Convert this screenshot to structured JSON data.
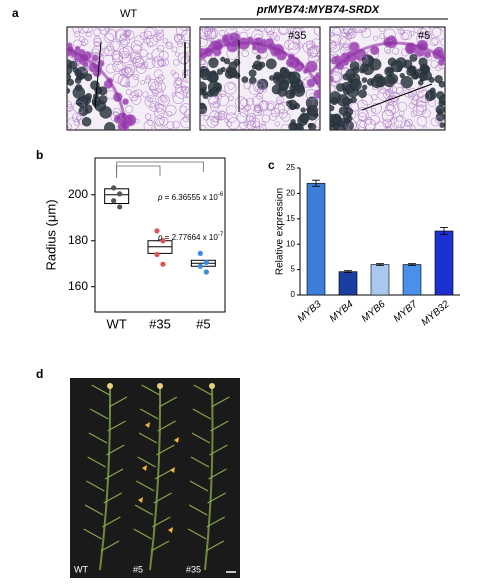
{
  "panel_labels": [
    "a",
    "b",
    "c",
    "d"
  ],
  "panel_a": {
    "group_label": "prMYB74:MYB74-SRDX",
    "images": [
      {
        "label": "WT"
      },
      {
        "label": "#35"
      },
      {
        "label": "#5"
      }
    ]
  },
  "chart_data": [
    {
      "type": "box",
      "ylabel": "Radius (μm)",
      "categories": [
        "WT",
        "#35",
        "#5"
      ],
      "colors": [
        "#555555",
        "#e05252",
        "#3a8fdc"
      ],
      "boxes": [
        {
          "q1": 196.2,
          "median": 200,
          "q3": 202.6,
          "points": [
            203,
            200.4,
            197.4,
            194.7
          ]
        },
        {
          "q1": 174.5,
          "median": 177.4,
          "q3": 180,
          "points": [
            184.3,
            180,
            174,
            169.8
          ]
        },
        {
          "q1": 168.9,
          "median": 170.2,
          "q3": 171.5,
          "points": [
            174.5,
            170.6,
            168.9,
            166.4
          ]
        }
      ],
      "ylim": [
        149,
        216
      ],
      "yticks": [
        160,
        180,
        200
      ],
      "annotations": [
        {
          "prefix": "p",
          "text": " = 6.36555 x 10",
          "exponent": "-6"
        },
        {
          "prefix": "p",
          "text": " = 2.77664 x 10",
          "exponent": "-7"
        }
      ]
    },
    {
      "type": "bar",
      "ylabel": "Relative expression",
      "categories": [
        "MYB3",
        "MYB4",
        "MYB6",
        "MYB7",
        "MYB32"
      ],
      "values": [
        22,
        4.6,
        6,
        6,
        12.6
      ],
      "errors": [
        0.6,
        0.2,
        0.2,
        0.2,
        0.7
      ],
      "colors": [
        "#3b7fd9",
        "#1a3fa0",
        "#a9c8f0",
        "#4a90e8",
        "#1c2fd0"
      ],
      "ylim": [
        0,
        25
      ],
      "yticks": [
        0,
        5,
        10,
        15,
        20,
        25
      ]
    }
  ],
  "panel_d": {
    "labels": [
      "WT",
      "#5",
      "#35"
    ]
  }
}
